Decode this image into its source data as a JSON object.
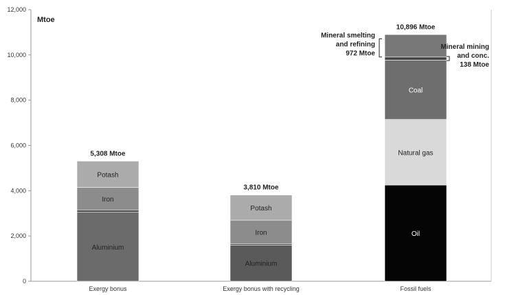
{
  "chart_data": {
    "type": "bar",
    "stacked": true,
    "unit_label": "Mtoe",
    "title": "",
    "xlabel": "",
    "ylabel": "",
    "ylim": [
      0,
      12000
    ],
    "yticks": [
      "0",
      "2,000",
      "4,000",
      "6,000",
      "8,000",
      "10,000",
      "12,000"
    ],
    "ytick_values": [
      0,
      2000,
      4000,
      6000,
      8000,
      10000,
      12000
    ],
    "grid": false,
    "categories": [
      "Exergy bonus",
      "Exergy bonus with recycling",
      "Fossil fuels"
    ],
    "totals": [
      "5,308 Mtoe",
      "3,810 Mtoe",
      "10,896 Mtoe"
    ],
    "bars": [
      {
        "category": "Exergy bonus",
        "segments": [
          {
            "label": "Aluminium",
            "value": 3050,
            "color": "#6b6b6b",
            "text_color": "#222222"
          },
          {
            "label": "",
            "value": 100,
            "color": "#4a4a4a",
            "text_color": "#222222"
          },
          {
            "label": "Iron",
            "value": 1000,
            "color": "#8c8c8c",
            "text_color": "#222222"
          },
          {
            "label": "Potash",
            "value": 1158,
            "color": "#ababab",
            "text_color": "#222222"
          }
        ]
      },
      {
        "category": "Exergy bonus with recycling",
        "segments": [
          {
            "label": "Aluminium",
            "value": 1600,
            "color": "#5a5a5a",
            "text_color": "#222222"
          },
          {
            "label": "",
            "value": 50,
            "color": "#3f3f3f",
            "text_color": "#222222"
          },
          {
            "label": "Iron",
            "value": 1050,
            "color": "#8c8c8c",
            "text_color": "#222222"
          },
          {
            "label": "Potash",
            "value": 1110,
            "color": "#ababab",
            "text_color": "#222222"
          }
        ]
      },
      {
        "category": "Fossil fuels",
        "segments": [
          {
            "label": "Oil",
            "value": 4250,
            "color": "#050505",
            "text_color": "#ffffff"
          },
          {
            "label": "Natural gas",
            "value": 2900,
            "color": "#d9d9d9",
            "text_color": "#222222"
          },
          {
            "label": "Coal",
            "value": 2620,
            "color": "#6e6e6e",
            "text_color": "#ffffff"
          },
          {
            "label": "",
            "value": 138,
            "color": "#444444",
            "text_color": "#ffffff"
          },
          {
            "label": "",
            "value": 988,
            "color": "#787878",
            "text_color": "#ffffff"
          }
        ]
      }
    ],
    "annotations": [
      {
        "lines": [
          "Mineral smelting",
          "and refining",
          "972  Mtoe"
        ],
        "side": "left"
      },
      {
        "lines": [
          "Mineral mining",
          "and conc.",
          "138  Mtoe"
        ],
        "side": "right"
      }
    ]
  }
}
